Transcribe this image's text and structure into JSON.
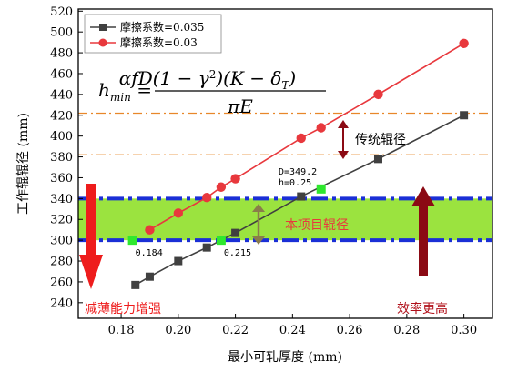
{
  "chart_data": {
    "type": "line",
    "xlabel": "最小可轧厚度 (mm)",
    "ylabel": "工作辊辊径 (mm)",
    "xlim": [
      0.165,
      0.31
    ],
    "ylim": [
      225,
      522
    ],
    "xticks": [
      0.18,
      0.2,
      0.22,
      0.24,
      0.26,
      0.28,
      0.3
    ],
    "xtick_labels": [
      "0.18",
      "0.20",
      "0.22",
      "0.24",
      "0.26",
      "0.28",
      "0.30"
    ],
    "yticks": [
      240,
      260,
      280,
      300,
      320,
      340,
      360,
      380,
      400,
      420,
      440,
      460,
      480,
      500,
      520
    ],
    "ytick_labels": [
      "240",
      "260",
      "280",
      "300",
      "320",
      "340",
      "360",
      "380",
      "400",
      "420",
      "440",
      "460",
      "480",
      "500",
      "520"
    ],
    "grid": false,
    "legend_position": "top-left",
    "series": [
      {
        "name": "摩擦系数=0.035",
        "color": "#404040",
        "marker": "square",
        "points": [
          [
            0.185,
            257
          ],
          [
            0.19,
            265
          ],
          [
            0.2,
            280
          ],
          [
            0.21,
            293
          ],
          [
            0.22,
            307
          ],
          [
            0.243,
            342
          ],
          [
            0.27,
            378
          ],
          [
            0.3,
            420
          ]
        ]
      },
      {
        "name": "摩擦系数=0.03",
        "color": "#e8383d",
        "marker": "circle",
        "points": [
          [
            0.19,
            310
          ],
          [
            0.2,
            326
          ],
          [
            0.21,
            341
          ],
          [
            0.215,
            351
          ],
          [
            0.22,
            359
          ],
          [
            0.243,
            398
          ],
          [
            0.25,
            408
          ],
          [
            0.27,
            440
          ],
          [
            0.3,
            489
          ]
        ]
      }
    ],
    "highlight_points": [
      {
        "x": 0.184,
        "y": 300,
        "label": "0.184",
        "color": "#2ee82e"
      },
      {
        "x": 0.215,
        "y": 300,
        "label": "0.215",
        "color": "#2ee82e"
      },
      {
        "x": 0.25,
        "y": 349.2,
        "color": "#2ee82e"
      }
    ],
    "reference_lines": [
      {
        "y": 300,
        "style": "blue-dashdot"
      },
      {
        "y": 340,
        "style": "blue-dashdot"
      },
      {
        "y": 382,
        "style": "orange-dashdot"
      },
      {
        "y": 422,
        "style": "orange-dashdot"
      }
    ],
    "band": {
      "y_from": 300,
      "y_to": 340,
      "color": "#9be33f"
    },
    "annotations": {
      "traditional": "传统辊径",
      "project": "本项目辊径",
      "thinning": "减薄能力增强",
      "efficiency": "效率更高",
      "point_d": "D=349.2",
      "point_h": "h=0.25"
    },
    "formula": "h_min = αfD(1 − γ²)(K − δ_T) / πE"
  },
  "colors": {
    "dark_series": "#404040",
    "red_series": "#e8383d",
    "green_band": "#9be33f",
    "blue_lines": "#1a2fd6",
    "orange_lines": "#e8872a",
    "dark_red_arrow": "#8b0a14",
    "bright_red_arrow": "#ee1c1c",
    "olive_arrow": "#8a7d4a"
  }
}
